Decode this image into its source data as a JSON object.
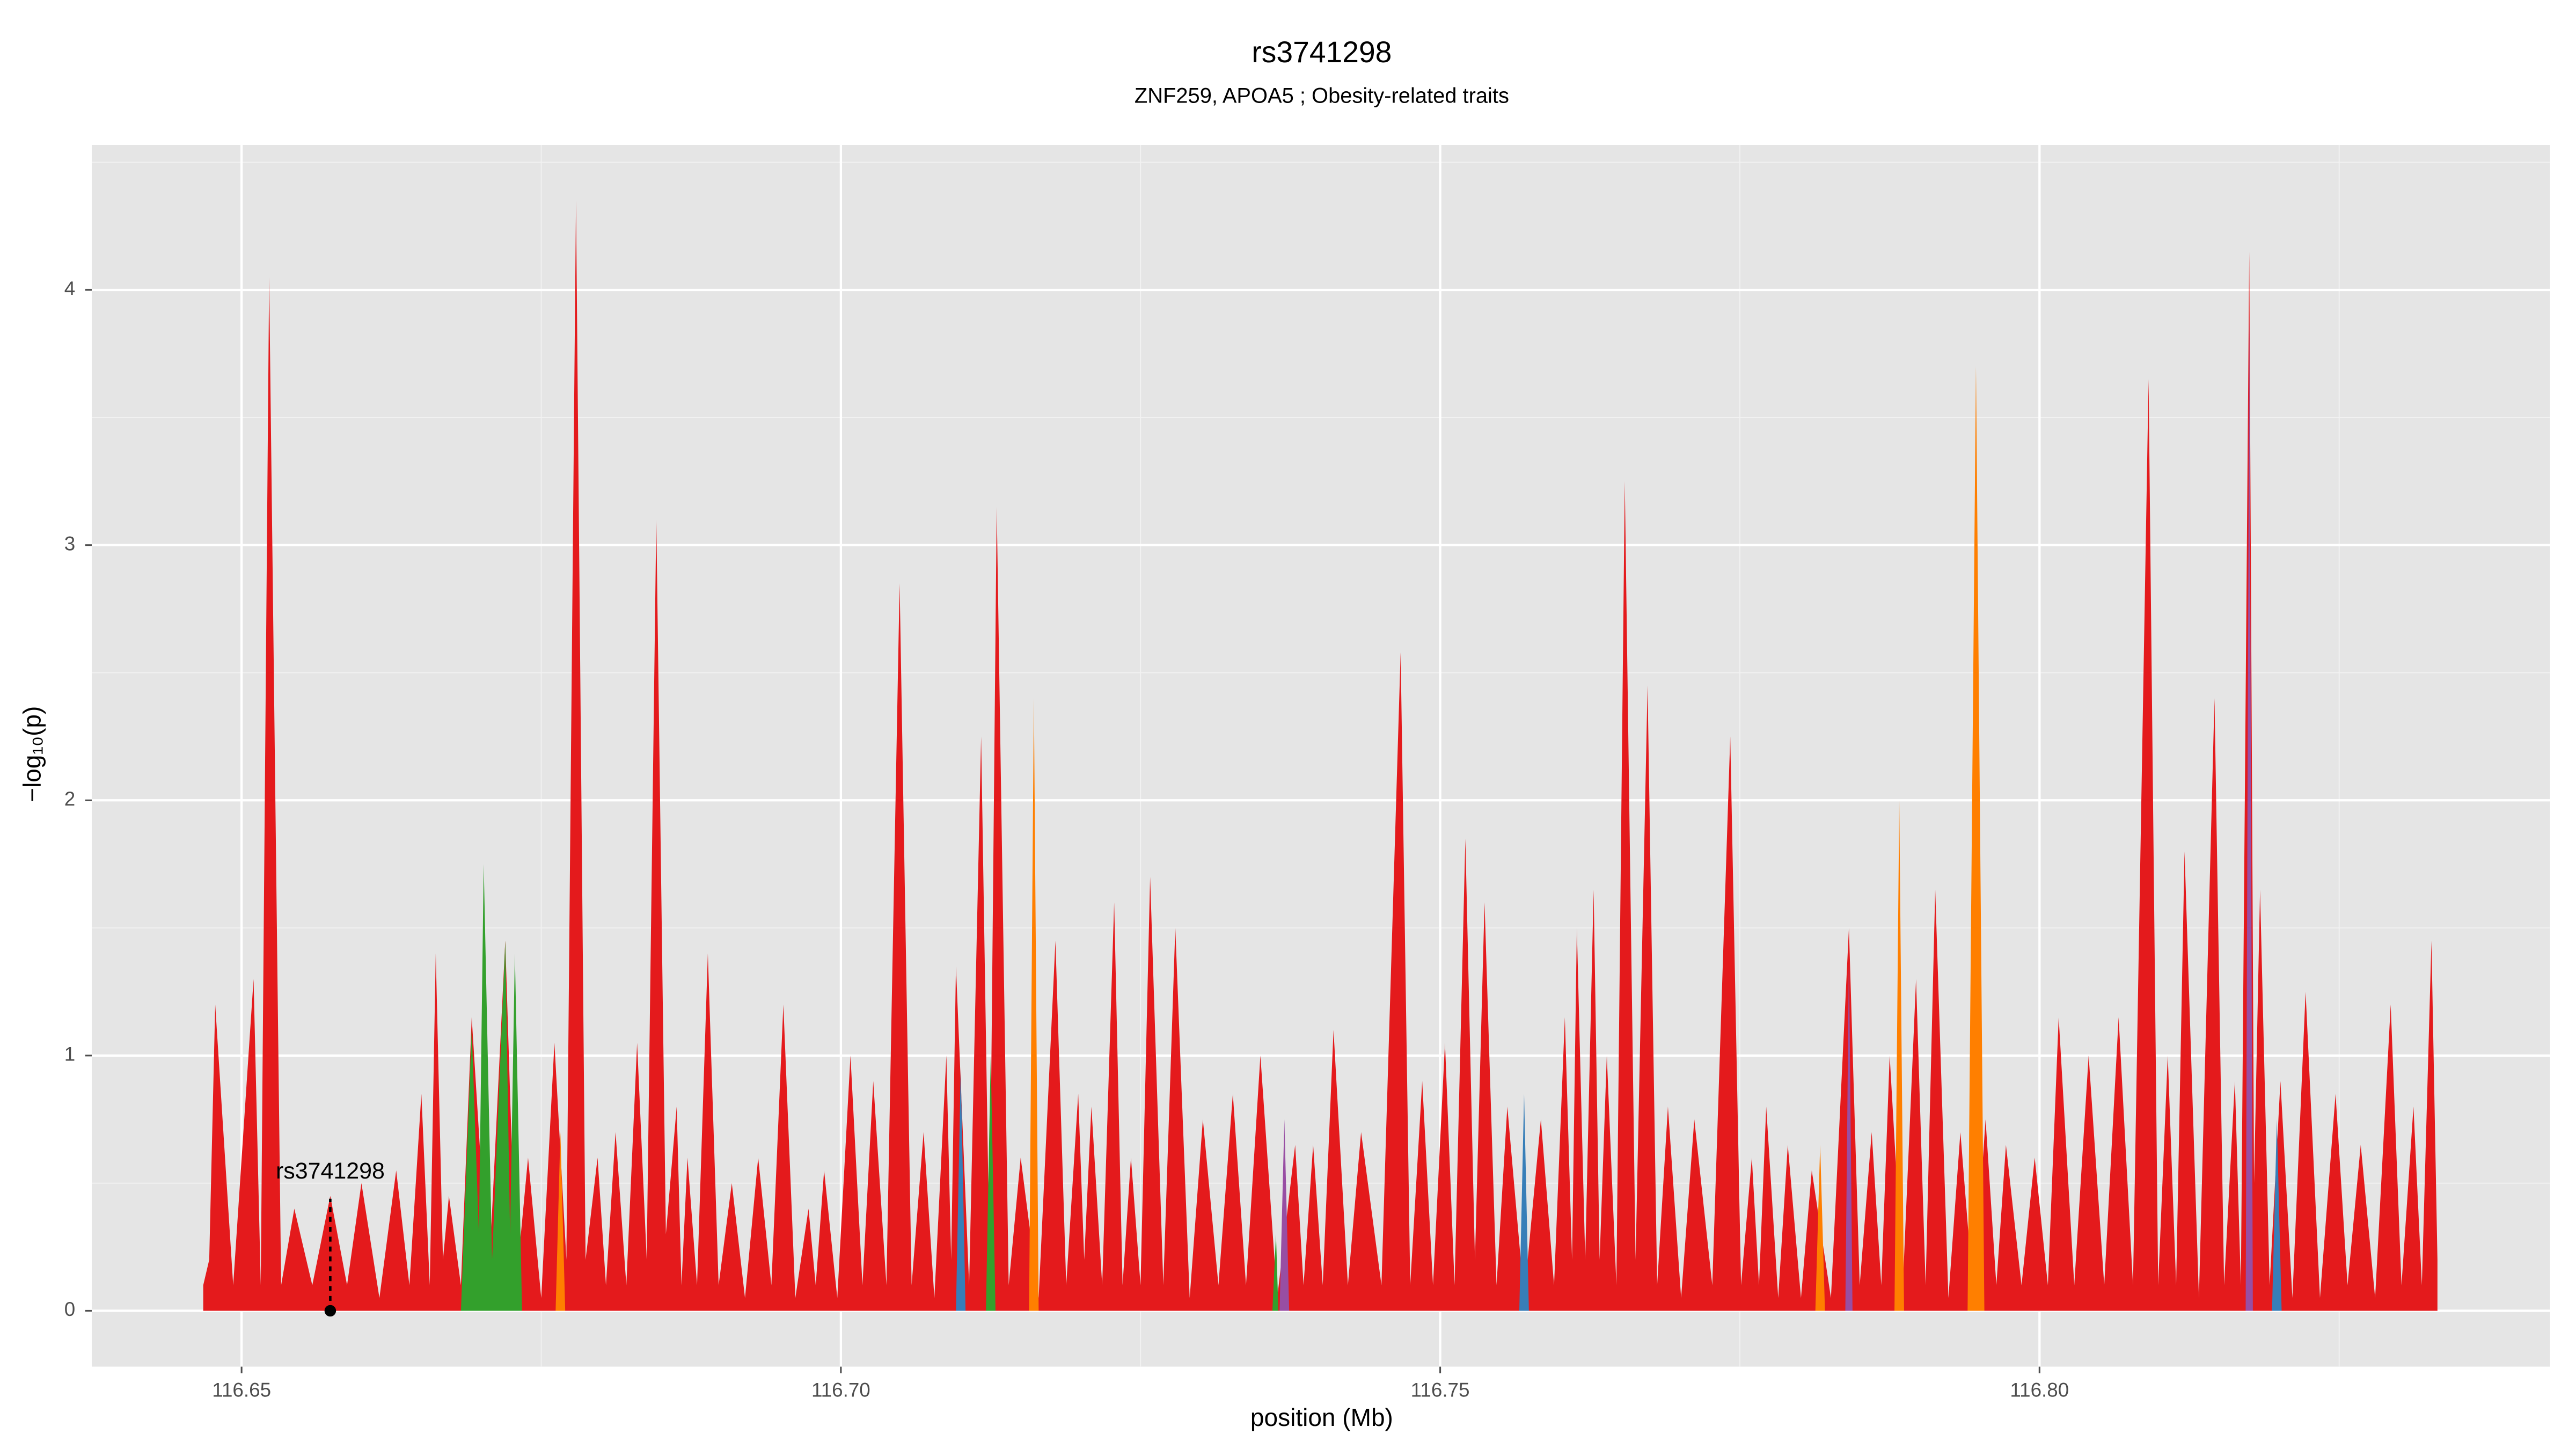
{
  "chart_data": {
    "type": "area",
    "title": "rs3741298",
    "subtitle": "ZNF259, APOA5 ; Obesity-related traits",
    "xlabel": "position (Mb)",
    "ylabel": "−log₁₀(p)",
    "xlim": [
      116.6375,
      116.8426
    ],
    "ylim": [
      -0.219,
      4.568
    ],
    "xticks": [
      116.65,
      {
        "value": 116.7,
        "label": "116.70"
      },
      116.75,
      {
        "value": 116.8,
        "label": "116.80"
      }
    ],
    "yticks": [
      0,
      1,
      2,
      3,
      4
    ],
    "grid": true,
    "annotation": {
      "text": "rs3741298",
      "x": 116.6574,
      "y": 0
    },
    "series": [
      {
        "color": "#e41a1c",
        "x": [
          116.6468,
          116.6473,
          116.6478,
          116.6493,
          116.651,
          116.6516,
          116.6523,
          116.6533,
          116.6544,
          116.6559,
          116.6574,
          116.6588,
          116.66,
          116.6615,
          116.6629,
          116.664,
          116.665,
          116.6657,
          116.6662,
          116.6668,
          116.6673,
          116.6683,
          116.6692,
          116.6706,
          116.672,
          116.6729,
          116.6739,
          116.675,
          116.6761,
          116.6771,
          116.6779,
          116.6787,
          116.6797,
          116.6804,
          116.6812,
          116.6821,
          116.683,
          116.6838,
          116.6846,
          116.6854,
          116.6863,
          116.6867,
          116.6872,
          116.688,
          116.6889,
          116.6898,
          116.6909,
          116.692,
          116.6931,
          116.6942,
          116.6952,
          116.6962,
          116.6973,
          116.6979,
          116.6986,
          116.6997,
          116.7008,
          116.7018,
          116.7027,
          116.7038,
          116.7049,
          116.7059,
          116.7069,
          116.7078,
          116.7088,
          116.7092,
          116.7096,
          116.7107,
          116.7117,
          116.7124,
          116.713,
          116.714,
          116.715,
          116.7165,
          116.7179,
          116.7188,
          116.7198,
          116.7203,
          116.7209,
          116.7218,
          116.7228,
          116.7235,
          116.7242,
          116.725,
          116.7258,
          116.7269,
          116.7279,
          116.7291,
          116.7302,
          116.7315,
          116.7327,
          116.7338,
          116.735,
          116.7364,
          116.7379,
          116.7386,
          116.7394,
          116.7402,
          116.7411,
          116.7423,
          116.7434,
          116.7451,
          116.7467,
          116.7475,
          116.7485,
          116.7494,
          116.7504,
          116.7512,
          116.7521,
          116.7529,
          116.7537,
          116.7547,
          116.7556,
          116.757,
          116.7584,
          116.7595,
          116.7604,
          116.761,
          116.7614,
          116.7621,
          116.7628,
          116.7633,
          116.7639,
          116.7647,
          116.7654,
          116.7663,
          116.7673,
          116.7681,
          116.769,
          116.7701,
          116.7712,
          116.7727,
          116.7742,
          116.7751,
          116.776,
          116.7766,
          116.7772,
          116.7782,
          116.779,
          116.7801,
          116.781,
          116.7826,
          116.7841,
          116.785,
          116.786,
          116.7868,
          116.7875,
          116.7886,
          116.7897,
          116.7905,
          116.7913,
          116.7924,
          116.7934,
          116.7945,
          116.7955,
          116.7964,
          116.7972,
          116.7985,
          116.7996,
          116.8007,
          116.8016,
          116.8029,
          116.8041,
          116.8054,
          116.8066,
          116.8078,
          116.8091,
          116.8099,
          116.8107,
          116.8114,
          116.8121,
          116.8133,
          116.8146,
          116.8154,
          116.8163,
          116.8168,
          116.8175,
          116.8179,
          116.8184,
          116.8192,
          116.8201,
          116.8211,
          116.8222,
          116.8234,
          116.8247,
          116.8257,
          116.8268,
          116.828,
          116.8293,
          116.8302,
          116.8312,
          116.8319,
          116.8327,
          116.8332
        ],
        "values": [
          0.1,
          0.2,
          1.2,
          0.1,
          1.3,
          0.1,
          4.05,
          0.1,
          0.4,
          0.1,
          0.45,
          0.1,
          0.5,
          0.05,
          0.55,
          0.1,
          0.85,
          0.1,
          1.4,
          0.2,
          0.45,
          0.1,
          1.15,
          0.1,
          1.45,
          0.1,
          0.6,
          0.05,
          1.05,
          0.2,
          4.35,
          0.2,
          0.6,
          0.1,
          0.7,
          0.1,
          1.05,
          0.2,
          3.1,
          0.3,
          0.8,
          0.1,
          0.6,
          0.1,
          1.4,
          0.1,
          0.5,
          0.05,
          0.6,
          0.1,
          1.2,
          0.05,
          0.4,
          0.1,
          0.55,
          0.05,
          1.0,
          0.1,
          0.9,
          0.1,
          2.85,
          0.1,
          0.7,
          0.05,
          1.0,
          0.2,
          1.35,
          0.1,
          2.25,
          0.2,
          3.15,
          0.1,
          0.6,
          0.05,
          1.45,
          0.1,
          0.85,
          0.2,
          0.8,
          0.1,
          1.6,
          0.1,
          0.6,
          0.1,
          1.7,
          0.1,
          1.5,
          0.05,
          0.75,
          0.1,
          0.85,
          0.1,
          1.0,
          0.05,
          0.65,
          0.1,
          0.65,
          0.1,
          1.1,
          0.1,
          0.7,
          0.1,
          2.58,
          0.1,
          0.9,
          0.1,
          1.05,
          0.1,
          1.85,
          0.2,
          1.6,
          0.1,
          0.8,
          0.05,
          0.75,
          0.1,
          1.15,
          0.2,
          1.5,
          0.2,
          1.65,
          0.2,
          1.0,
          0.1,
          3.25,
          0.2,
          2.45,
          0.1,
          0.8,
          0.05,
          0.75,
          0.1,
          2.25,
          0.1,
          0.6,
          0.1,
          0.8,
          0.05,
          0.65,
          0.05,
          0.55,
          0.05,
          1.5,
          0.1,
          0.7,
          0.1,
          1.0,
          0.1,
          1.3,
          0.1,
          1.65,
          0.05,
          0.7,
          0.05,
          0.75,
          0.1,
          0.65,
          0.1,
          0.6,
          0.1,
          1.15,
          0.1,
          1.0,
          0.1,
          1.15,
          0.1,
          3.65,
          0.1,
          1.0,
          0.1,
          1.8,
          0.05,
          2.4,
          0.1,
          0.9,
          0.1,
          4.15,
          0.5,
          1.65,
          0.1,
          0.9,
          0.05,
          1.25,
          0.05,
          0.85,
          0.1,
          0.65,
          0.05,
          1.2,
          0.1,
          0.8,
          0.1,
          1.45,
          0.2
        ]
      },
      {
        "color": "#ff7f00",
        "x": [
          116.6762,
          116.6766,
          116.677,
          116.7157,
          116.7161,
          116.7165,
          116.7813,
          116.7817,
          116.7821,
          116.7879,
          116.7883,
          116.7887,
          116.794,
          116.7947,
          116.7954
        ],
        "values": [
          0,
          0.7,
          0,
          0,
          2.4,
          0,
          0,
          0.65,
          0,
          0,
          2.0,
          0,
          0,
          3.7,
          0
        ]
      },
      {
        "color": "#377eb8",
        "x": [
          116.7096,
          116.71,
          116.7104,
          116.7566,
          116.757,
          116.7574,
          116.8194,
          116.8198,
          116.8202
        ],
        "values": [
          0,
          0.95,
          0,
          0,
          0.85,
          0,
          0,
          0.75,
          0
        ]
      },
      {
        "color": "#984ea3",
        "x": [
          116.7366,
          116.737,
          116.7374,
          116.7838,
          116.7841,
          116.7844,
          116.8172,
          116.8175,
          116.8178
        ],
        "values": [
          0,
          0.75,
          0,
          0,
          1.4,
          0,
          0,
          3.9,
          0
        ]
      },
      {
        "color": "#33a02c",
        "x": [
          116.6683,
          116.6692,
          116.6698,
          116.6702,
          116.6709,
          116.672,
          116.6724,
          116.6728,
          116.6734,
          116.7121,
          116.7125,
          116.7129,
          116.736,
          116.7363,
          116.7365
        ],
        "values": [
          0,
          1.1,
          0.3,
          1.75,
          0.2,
          1.45,
          0.3,
          1.4,
          0,
          0,
          1.0,
          0,
          0,
          0.3,
          0
        ]
      }
    ]
  }
}
